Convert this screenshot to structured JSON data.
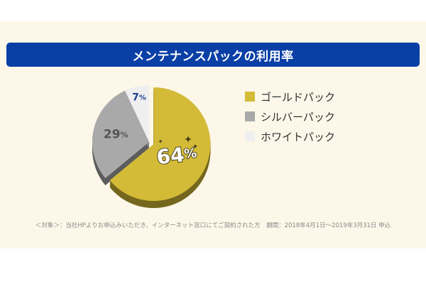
{
  "chart_data": {
    "type": "pie",
    "title": "メンテナンスパックの利用率",
    "categories": [
      "ゴールドパック",
      "シルバーパック",
      "ホワイトパック"
    ],
    "values": [
      64,
      29,
      7
    ],
    "labels": [
      "64%",
      "29%",
      "7%"
    ],
    "colors": [
      "#d4bb37",
      "#a9a9a9",
      "#efefef"
    ],
    "legend_position": "right"
  },
  "footnote": "＜対象＞：当社HPよりお申込みいただき、インターネット窓口にてご契約された方　期間：2018年4月1日〜2019年3月31日 申込",
  "colors": {
    "banner": "#0a3fa6",
    "card_background": "#fcf7e8",
    "label_blue": "#1c3f8e",
    "sparkle": "#d4bb37"
  },
  "icons": [
    "sparkle-icon"
  ]
}
